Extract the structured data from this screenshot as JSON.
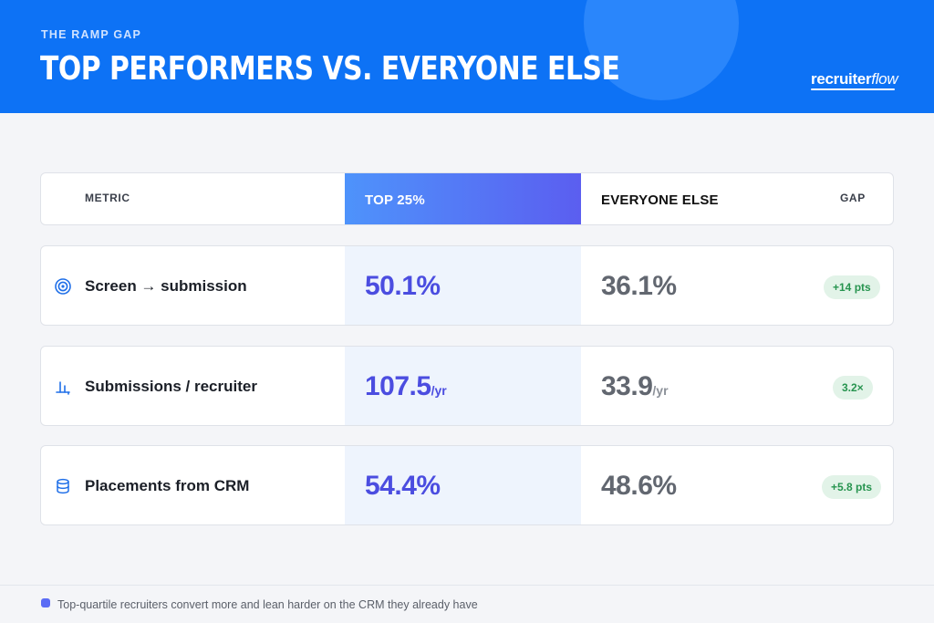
{
  "header": {
    "kicker": "THE RAMP GAP",
    "title": "TOP PERFORMERS VS. EVERYONE ELSE",
    "logo_main": "recruiter",
    "logo_accent": "flow"
  },
  "table": {
    "columns": {
      "metric": "METRIC",
      "top": "TOP 25%",
      "else": "EVERYONE ELSE",
      "gap": "GAP"
    },
    "rows": [
      {
        "icon": "target-icon",
        "metric": "Screen → submission",
        "top_value": "50.1%",
        "top_unit": "",
        "else_value": "36.1%",
        "else_unit": "",
        "gap": "+14 pts"
      },
      {
        "icon": "bar-chart-icon",
        "metric": "Submissions / recruiter",
        "top_value": "107.5",
        "top_unit": "/yr",
        "else_value": "33.9",
        "else_unit": "/yr",
        "gap": "3.2×"
      },
      {
        "icon": "database-icon",
        "metric": "Placements from CRM",
        "top_value": "54.4%",
        "top_unit": "",
        "else_value": "48.6%",
        "else_unit": "",
        "gap": "+5.8 pts"
      }
    ]
  },
  "footer": {
    "note": "Top-quartile recruiters convert more and lean harder on the CRM they already have"
  },
  "colors": {
    "header_bg": "#0d72f5",
    "top_accent": "#4b4de0",
    "gap_badge_bg": "#e2f3e8",
    "gap_badge_text": "#27944f"
  }
}
